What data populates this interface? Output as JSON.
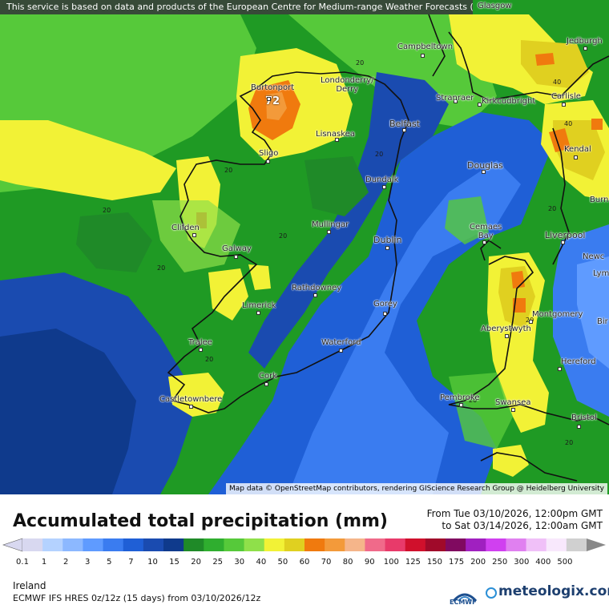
{
  "disclaimer": "This service is based on data and products of the European Centre for Medium-range Weather Forecasts (ECMWF)",
  "attribution": "Map data © OpenStreetMap contributors, rendering GIScience Research Group @ Heidelberg University",
  "title": "Accumulated total precipitation (mm)",
  "from_text": "From Tue 03/10/2026, 12:00pm GMT",
  "to_text": "to Sat 03/14/2026, 12:00am GMT",
  "region": "Ireland",
  "model_line": "ECMWF IFS HRES 0z/12z (15 days) from 03/10/2026/12z",
  "ecmwf_label": "ECMWF",
  "brand": "meteologix.com",
  "max_value": "72",
  "scale": {
    "ticks": [
      "0.1",
      "1",
      "2",
      "3",
      "5",
      "7",
      "10",
      "15",
      "20",
      "25",
      "30",
      "40",
      "50",
      "60",
      "70",
      "80",
      "90",
      "100",
      "125",
      "150",
      "175",
      "200",
      "250",
      "300",
      "400",
      "500"
    ],
    "colors": [
      "#d8d8f0",
      "#b4d2ff",
      "#8cb8ff",
      "#5f9bff",
      "#3a7cf0",
      "#1f5fd6",
      "#1a4bb0",
      "#0f3a8c",
      "#1f8a28",
      "#2fae2f",
      "#56c93a",
      "#8fe04a",
      "#f2f236",
      "#e0d020",
      "#f07a0e",
      "#f39a3a",
      "#f5b58a",
      "#f06a8a",
      "#e83a6a",
      "#d0102c",
      "#a00a2a",
      "#800a60",
      "#a020c0",
      "#d040f0",
      "#e080f0",
      "#f0c0f8",
      "#f8e8fc",
      "#d0d0d0"
    ]
  },
  "cities": [
    {
      "name": "Glasgow"
    },
    {
      "name": "Jedburgh"
    },
    {
      "name": "Campbeltown"
    },
    {
      "name": "Londonderry/\nDerry"
    },
    {
      "name": "Burtonport"
    },
    {
      "name": "Stranraer"
    },
    {
      "name": "Kirkcudbright"
    },
    {
      "name": "Carlisle"
    },
    {
      "name": "Belfast"
    },
    {
      "name": "Kendal"
    },
    {
      "name": "Sligo"
    },
    {
      "name": "Lisnaskea"
    },
    {
      "name": "Douglas"
    },
    {
      "name": "Dundalk"
    },
    {
      "name": "Burn"
    },
    {
      "name": "Clifden"
    },
    {
      "name": "Mullingar"
    },
    {
      "name": "Cemaes\nBay"
    },
    {
      "name": "Liverpool"
    },
    {
      "name": "Dublin"
    },
    {
      "name": "Galway"
    },
    {
      "name": "Newc"
    },
    {
      "name": "Lym"
    },
    {
      "name": "Rathdowney"
    },
    {
      "name": "Limerick"
    },
    {
      "name": "Gorey"
    },
    {
      "name": "Montgomery"
    },
    {
      "name": "Bir"
    },
    {
      "name": "Aberystwyth"
    },
    {
      "name": "Tralee"
    },
    {
      "name": "Waterford"
    },
    {
      "name": "Hereford"
    },
    {
      "name": "Cork"
    },
    {
      "name": "Pembroke"
    },
    {
      "name": "Castletownbere"
    },
    {
      "name": "Swansea"
    },
    {
      "name": "Bristol"
    }
  ],
  "contour_labels": [
    "20",
    "20",
    "40",
    "40",
    "20",
    "20",
    "20",
    "20",
    "20",
    "20",
    "20",
    "20",
    "20"
  ]
}
